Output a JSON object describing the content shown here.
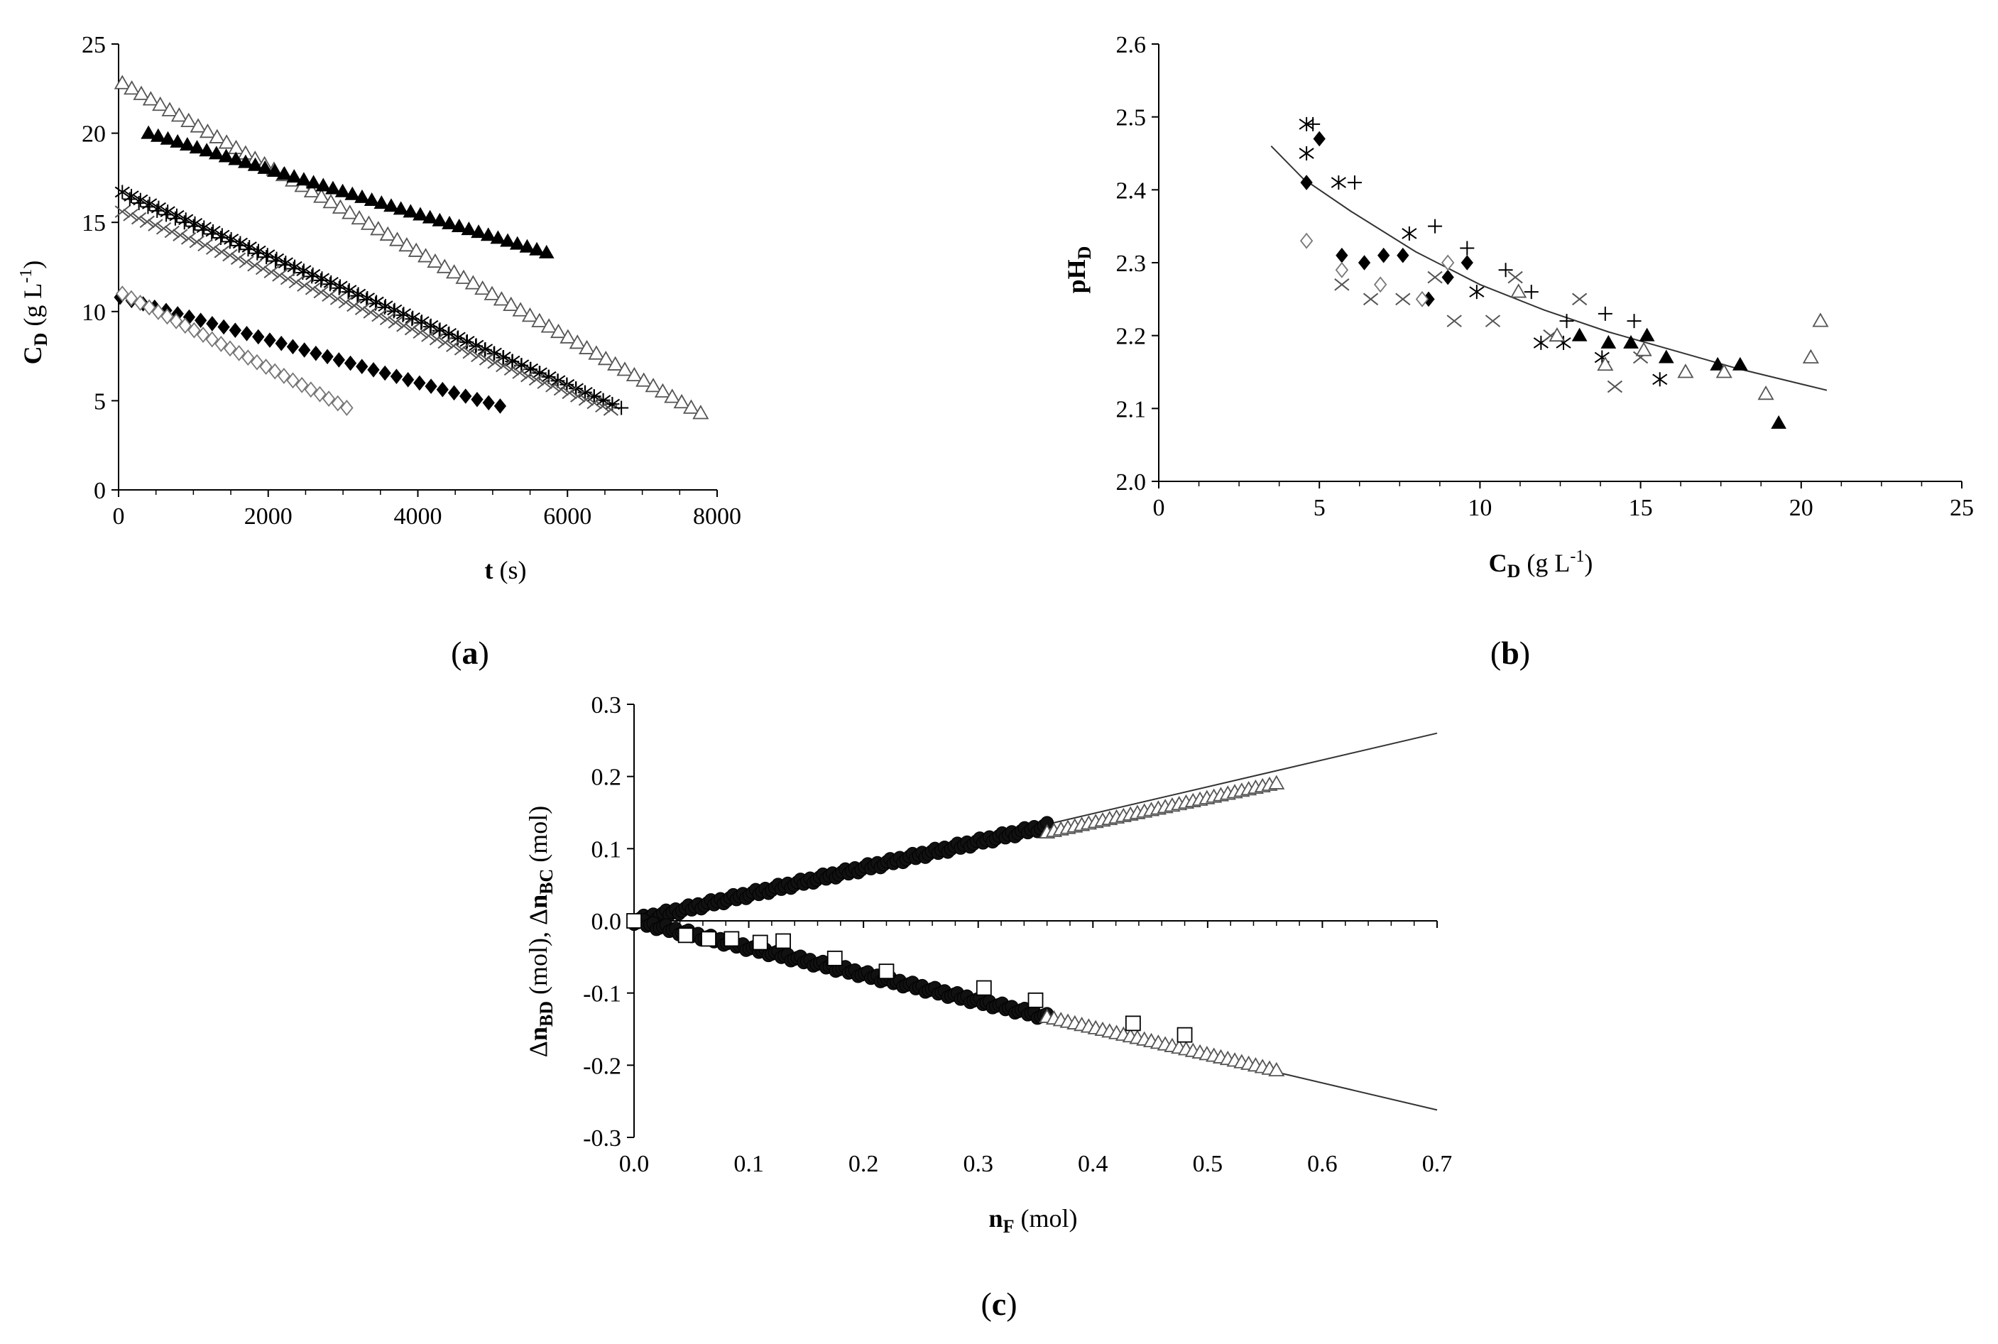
{
  "chart_data": [
    {
      "panel": "(a)",
      "panel_label_open": "(",
      "panel_label_letter": "a",
      "panel_label_close": ")",
      "type": "scatter",
      "xlabel": "t",
      "xlabel_unit": " (s)",
      "ylabel_main": "C",
      "ylabel_sub": "D",
      "ylabel_unit": " (g L",
      "ylabel_exp": "-1",
      "ylabel_close": ")",
      "xlim": [
        0,
        8000
      ],
      "ylim": [
        0,
        25
      ],
      "xticks": [
        "0",
        "2000",
        "4000",
        "6000",
        "8000"
      ],
      "yticks": [
        "0",
        "5",
        "10",
        "15",
        "20",
        "25"
      ],
      "grid": false,
      "series": [
        {
          "marker": "open-triangle",
          "x_start": 50,
          "x_end": 7780,
          "y_start": 22.8,
          "y_end": 4.3,
          "n": 62
        },
        {
          "marker": "filled-triangle",
          "x_start": 400,
          "x_end": 5720,
          "y_start": 20.0,
          "y_end": 13.3,
          "n": 42
        },
        {
          "marker": "plus",
          "x_start": 150,
          "x_end": 6720,
          "y_start": 16.3,
          "y_end": 4.6,
          "n": 55
        },
        {
          "marker": "star",
          "x_start": 50,
          "x_end": 6600,
          "y_start": 16.7,
          "y_end": 4.8,
          "n": 55
        },
        {
          "marker": "cross",
          "x_start": 50,
          "x_end": 6580,
          "y_start": 15.6,
          "y_end": 4.5,
          "n": 60
        },
        {
          "marker": "filled-diamond",
          "x_start": 20,
          "x_end": 5100,
          "y_start": 10.8,
          "y_end": 4.7,
          "n": 34
        },
        {
          "marker": "open-diamond",
          "x_start": 50,
          "x_end": 3050,
          "y_start": 11.0,
          "y_end": 4.6,
          "n": 26
        }
      ]
    },
    {
      "panel": "(b)",
      "panel_label_open": "(",
      "panel_label_letter": "b",
      "panel_label_close": ")",
      "type": "scatter",
      "xlabel_main": "C",
      "xlabel_sub": "D",
      "xlabel_unit": " (g L",
      "xlabel_exp": "-1",
      "xlabel_close": ")",
      "ylabel_main": "pH",
      "ylabel_sub": "D",
      "xlim": [
        0,
        25
      ],
      "ylim": [
        2.0,
        2.6
      ],
      "xticks": [
        "0",
        "5",
        "10",
        "15",
        "20",
        "25"
      ],
      "yticks": [
        "2.0",
        "2.1",
        "2.2",
        "2.3",
        "2.4",
        "2.5",
        "2.6"
      ],
      "grid": false,
      "fit_curve": {
        "x": [
          3.5,
          4.5,
          6,
          8,
          10,
          12,
          14,
          16,
          18,
          20.8
        ],
        "y": [
          2.46,
          2.415,
          2.37,
          2.315,
          2.27,
          2.235,
          2.205,
          2.18,
          2.155,
          2.125
        ]
      },
      "series": [
        {
          "marker": "star",
          "points": [
            [
              4.6,
              2.49
            ],
            [
              4.6,
              2.45
            ],
            [
              5.6,
              2.41
            ],
            [
              7.8,
              2.34
            ],
            [
              9.9,
              2.26
            ],
            [
              11.9,
              2.19
            ],
            [
              12.6,
              2.19
            ],
            [
              13.8,
              2.17
            ],
            [
              15.6,
              2.14
            ]
          ]
        },
        {
          "marker": "plus",
          "points": [
            [
              4.8,
              2.49
            ],
            [
              6.1,
              2.41
            ],
            [
              8.6,
              2.35
            ],
            [
              9.6,
              2.32
            ],
            [
              10.8,
              2.29
            ],
            [
              11.6,
              2.26
            ],
            [
              12.7,
              2.22
            ],
            [
              13.9,
              2.23
            ],
            [
              14.8,
              2.22
            ]
          ]
        },
        {
          "marker": "filled-diamond",
          "points": [
            [
              4.6,
              2.41
            ],
            [
              5.0,
              2.47
            ],
            [
              5.7,
              2.31
            ],
            [
              6.4,
              2.3
            ],
            [
              7.0,
              2.31
            ],
            [
              7.6,
              2.31
            ],
            [
              8.4,
              2.25
            ],
            [
              9.0,
              2.28
            ],
            [
              9.6,
              2.3
            ]
          ]
        },
        {
          "marker": "open-diamond",
          "points": [
            [
              4.6,
              2.33
            ],
            [
              5.7,
              2.29
            ],
            [
              6.9,
              2.27
            ],
            [
              8.2,
              2.25
            ],
            [
              9.0,
              2.3
            ]
          ]
        },
        {
          "marker": "cross",
          "points": [
            [
              5.7,
              2.27
            ],
            [
              6.6,
              2.25
            ],
            [
              7.6,
              2.25
            ],
            [
              8.6,
              2.28
            ],
            [
              9.2,
              2.22
            ],
            [
              10.4,
              2.22
            ],
            [
              11.1,
              2.28
            ],
            [
              12.2,
              2.2
            ],
            [
              13.1,
              2.25
            ],
            [
              14.2,
              2.13
            ],
            [
              15.0,
              2.17
            ]
          ]
        },
        {
          "marker": "filled-triangle",
          "points": [
            [
              13.1,
              2.2
            ],
            [
              14.0,
              2.19
            ],
            [
              14.7,
              2.19
            ],
            [
              15.2,
              2.2
            ],
            [
              15.8,
              2.17
            ],
            [
              17.4,
              2.16
            ],
            [
              18.1,
              2.16
            ],
            [
              19.3,
              2.08
            ]
          ]
        },
        {
          "marker": "open-triangle",
          "points": [
            [
              11.2,
              2.26
            ],
            [
              12.4,
              2.2
            ],
            [
              13.9,
              2.16
            ],
            [
              15.1,
              2.18
            ],
            [
              16.4,
              2.15
            ],
            [
              17.6,
              2.15
            ],
            [
              18.9,
              2.12
            ],
            [
              20.3,
              2.17
            ],
            [
              20.6,
              2.22
            ]
          ]
        }
      ]
    },
    {
      "panel": "(c)",
      "panel_label_open": "(",
      "panel_label_letter": "c",
      "panel_label_close": ")",
      "type": "scatter",
      "xlabel_main": "n",
      "xlabel_sub": "F",
      "xlabel_unit": " (mol)",
      "ylabel_delta1": "Δ",
      "ylabel_main1": "n",
      "ylabel_sub1": "BD",
      "ylabel_unit1": " (mol),  ",
      "ylabel_delta2": "Δ",
      "ylabel_main2": "n",
      "ylabel_sub2": "BC",
      "ylabel_unit2": " (mol)",
      "xlim": [
        0,
        0.7
      ],
      "ylim": [
        -0.3,
        0.3
      ],
      "xticks": [
        "0.0",
        "0.1",
        "0.2",
        "0.3",
        "0.4",
        "0.5",
        "0.6",
        "0.7"
      ],
      "yticks": [
        "-0.3",
        "-0.2",
        "-0.1",
        "0.0",
        "0.1",
        "0.2",
        "0.3"
      ],
      "grid": false,
      "fit_lines": [
        {
          "x": [
            0,
            0.7
          ],
          "y": [
            0,
            0.26
          ]
        },
        {
          "x": [
            0,
            0.7
          ],
          "y": [
            0,
            -0.262
          ]
        }
      ],
      "series": [
        {
          "marker": "dense-dark-upper",
          "x_start": 0.0,
          "x_end": 0.36,
          "slope": 0.365
        },
        {
          "marker": "open-triangle-upper",
          "x_start": 0.36,
          "x_end": 0.56,
          "slope": 0.34
        },
        {
          "marker": "dense-dark-lower",
          "x_start": 0.0,
          "x_end": 0.36,
          "slope": -0.37
        },
        {
          "marker": "open-triangle-lower",
          "x_start": 0.36,
          "x_end": 0.56,
          "slope": -0.37
        },
        {
          "marker": "open-square",
          "points": [
            [
              0.0,
              0.0
            ],
            [
              0.045,
              -0.02
            ],
            [
              0.065,
              -0.025
            ],
            [
              0.085,
              -0.025
            ],
            [
              0.11,
              -0.03
            ],
            [
              0.13,
              -0.028
            ],
            [
              0.175,
              -0.052
            ],
            [
              0.22,
              -0.07
            ],
            [
              0.305,
              -0.093
            ],
            [
              0.35,
              -0.11
            ],
            [
              0.435,
              -0.142
            ],
            [
              0.48,
              -0.158
            ]
          ]
        }
      ]
    }
  ]
}
